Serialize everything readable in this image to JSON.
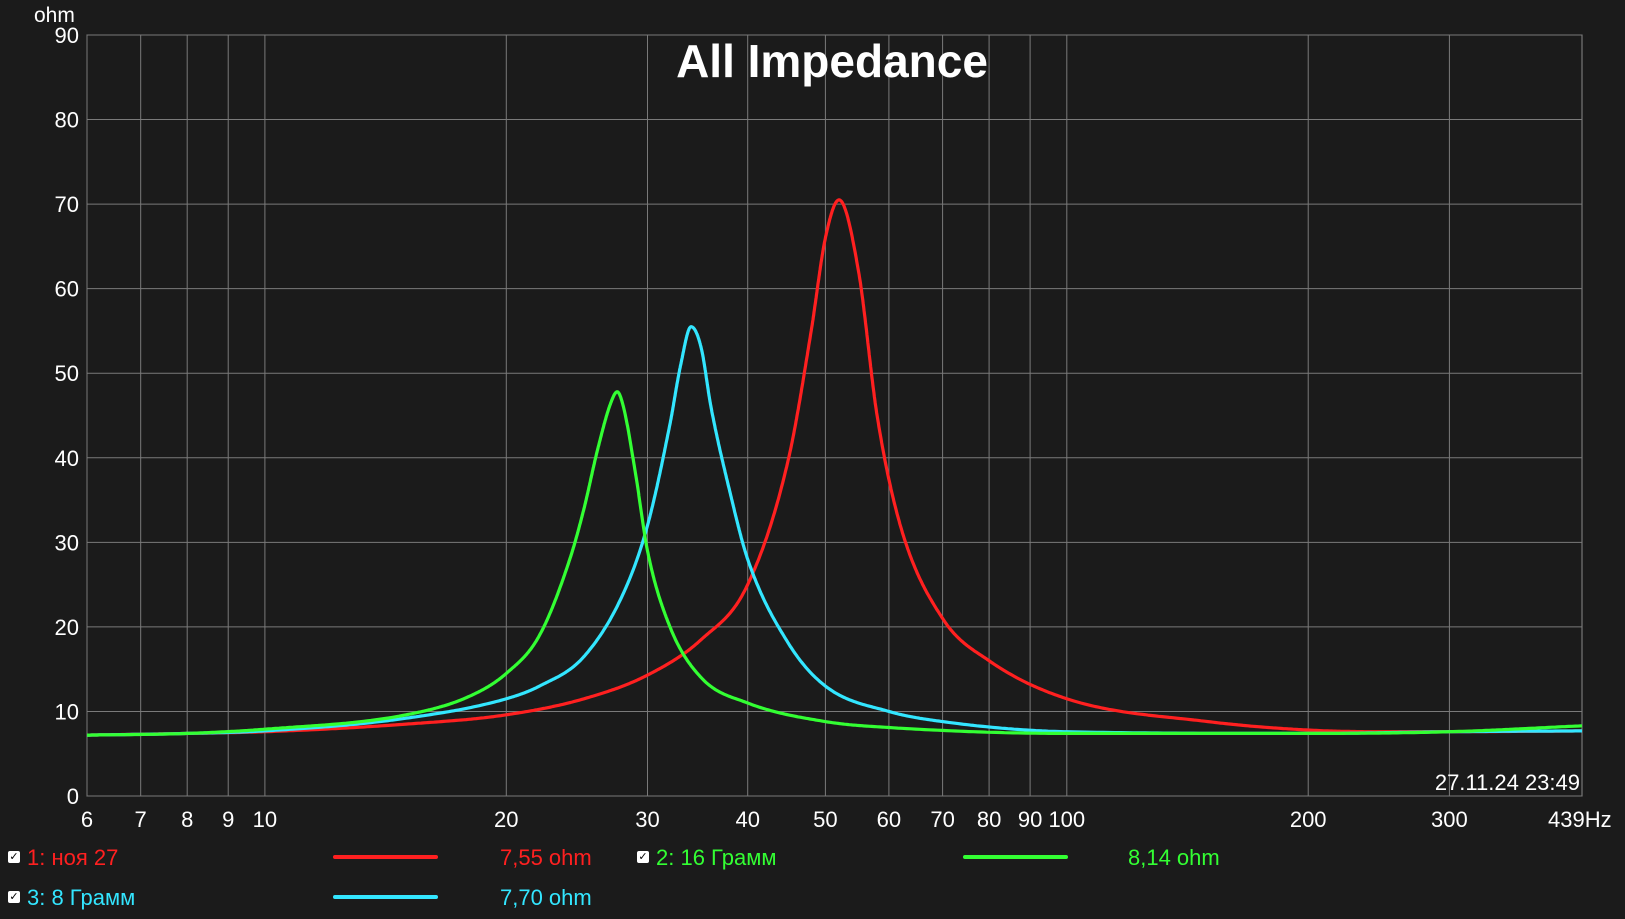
{
  "chart_data": {
    "type": "line",
    "title": "All Impedance",
    "ylabel": "ohm",
    "x_unit": "Hz",
    "x_scale": "log",
    "xlim": [
      6,
      439
    ],
    "ylim": [
      0,
      90
    ],
    "y_ticks": [
      0,
      10,
      20,
      30,
      40,
      50,
      60,
      70,
      80,
      90
    ],
    "x_ticks": [
      6,
      7,
      8,
      9,
      10,
      20,
      30,
      40,
      50,
      60,
      70,
      80,
      90,
      100,
      200,
      300
    ],
    "x_tick_labels": [
      "6",
      "7",
      "8",
      "9",
      "10",
      "20",
      "30",
      "40",
      "50",
      "60",
      "70",
      "80",
      "90",
      "100",
      "200",
      "300"
    ],
    "x_end_label": "439Hz",
    "timestamp": "27.11.24 23:49",
    "grid": true,
    "series": [
      {
        "name": "1: ноя 27",
        "color": "#ff2020",
        "value_label": "7,55 ohm",
        "x": [
          6,
          8,
          10,
          15,
          20,
          25,
          30,
          35,
          40,
          45,
          48,
          50,
          52,
          55,
          58,
          62,
          70,
          80,
          100,
          150,
          200,
          250,
          300,
          439
        ],
        "y": [
          7.2,
          7.4,
          7.6,
          8.5,
          9.6,
          11.5,
          14.3,
          18.5,
          25,
          40,
          55,
          66,
          70.5,
          62,
          45,
          32,
          21,
          16,
          11.5,
          8.8,
          7.8,
          7.6,
          7.6,
          7.7
        ]
      },
      {
        "name": "2: 16 Грамм",
        "color": "#33ff33",
        "value_label": "8,14 ohm",
        "x": [
          6,
          8,
          10,
          15,
          18,
          20,
          22,
          24,
          25,
          26,
          27,
          27.5,
          28,
          29,
          30,
          32,
          35,
          40,
          50,
          60,
          100,
          200,
          300,
          439
        ],
        "y": [
          7.2,
          7.4,
          7.9,
          9.6,
          11.8,
          14.5,
          19,
          28,
          34,
          41,
          46.5,
          47.8,
          46,
          38,
          29,
          20,
          14,
          11,
          8.8,
          8.1,
          7.4,
          7.4,
          7.6,
          8.3
        ]
      },
      {
        "name": "3: 8 Грамм",
        "color": "#33e6ff",
        "value_label": "7,70 ohm",
        "x": [
          6,
          8,
          10,
          15,
          20,
          22,
          25,
          28,
          30,
          32,
          33,
          34,
          35,
          36,
          38,
          40,
          45,
          50,
          60,
          70,
          100,
          200,
          300,
          439
        ],
        "y": [
          7.2,
          7.4,
          7.7,
          9.2,
          11.5,
          13,
          16.5,
          24,
          32,
          44,
          51,
          55.5,
          53,
          46,
          36,
          28,
          18,
          13,
          10,
          8.8,
          7.6,
          7.4,
          7.6,
          7.7
        ]
      }
    ]
  }
}
